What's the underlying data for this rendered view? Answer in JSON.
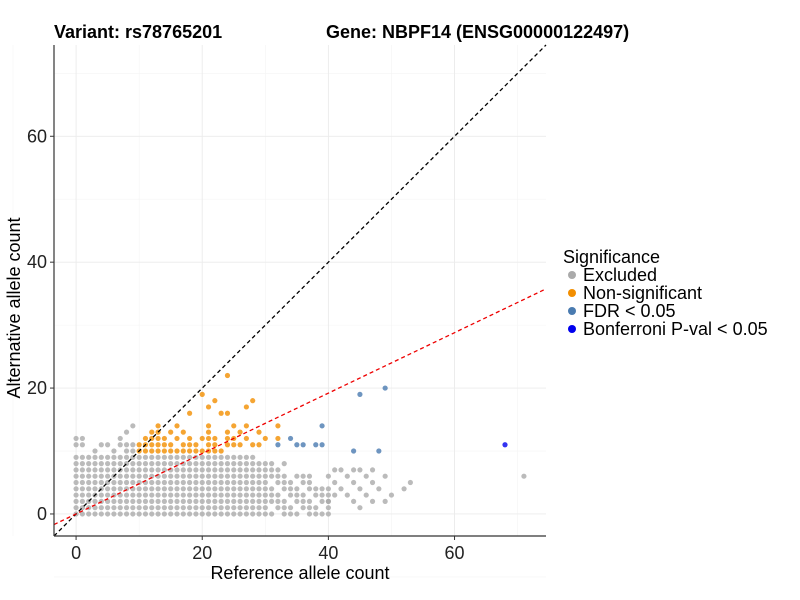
{
  "chart_data": {
    "type": "scatter",
    "title_left": "Variant: rs78765201",
    "title_right": "Gene: NBPF14 (ENSG00000122497)",
    "xlabel": "Reference allele count",
    "ylabel": "Alternative allele count",
    "xlim": [
      -3.5,
      74.5
    ],
    "ylim": [
      -3.5,
      74.5
    ],
    "x_ticks": [
      0,
      20,
      40,
      60
    ],
    "y_ticks": [
      0,
      20,
      40,
      60
    ],
    "grid": true,
    "legend": {
      "title": "Significance",
      "placement": "right",
      "entries": [
        {
          "label": "Excluded",
          "color": "#aaaaaa"
        },
        {
          "label": "Non-significant",
          "color": "#f28e00"
        },
        {
          "label": "FDR < 0.05",
          "color": "#4a7bb0"
        },
        {
          "label": "Bonferroni P-val < 0.05",
          "color": "#0000ee"
        }
      ]
    },
    "reference_lines": [
      {
        "slope": 1,
        "intercept": 0,
        "color": "#000000",
        "dash": "dashed"
      },
      {
        "slope": 0.48,
        "intercept": 0,
        "color": "#ee0000",
        "dash": "dashed"
      }
    ],
    "series": [
      {
        "group": "Non-significant",
        "color": "#f28e00",
        "points": [
          [
            10,
            10
          ],
          [
            11,
            10
          ],
          [
            12,
            10
          ],
          [
            13,
            10
          ],
          [
            14,
            10
          ],
          [
            15,
            10
          ],
          [
            16,
            10
          ],
          [
            17,
            10
          ],
          [
            18,
            10
          ],
          [
            19,
            10
          ],
          [
            20,
            10
          ],
          [
            21,
            10
          ],
          [
            22,
            10
          ],
          [
            23,
            10
          ],
          [
            10,
            11
          ],
          [
            11,
            11
          ],
          [
            12,
            11
          ],
          [
            13,
            11
          ],
          [
            14,
            11
          ],
          [
            15,
            11
          ],
          [
            17,
            11
          ],
          [
            18,
            11
          ],
          [
            19,
            11
          ],
          [
            21,
            11
          ],
          [
            22,
            11
          ],
          [
            24,
            11
          ],
          [
            25,
            11
          ],
          [
            26,
            11
          ],
          [
            28,
            11
          ],
          [
            29,
            11
          ],
          [
            11,
            12
          ],
          [
            12,
            12
          ],
          [
            13,
            12
          ],
          [
            14,
            12
          ],
          [
            16,
            12
          ],
          [
            18,
            12
          ],
          [
            20,
            12
          ],
          [
            21,
            12
          ],
          [
            22,
            12
          ],
          [
            24,
            12
          ],
          [
            25,
            12
          ],
          [
            27,
            12
          ],
          [
            30,
            12
          ],
          [
            32,
            12
          ],
          [
            12,
            13
          ],
          [
            13,
            13
          ],
          [
            15,
            13
          ],
          [
            17,
            13
          ],
          [
            21,
            13
          ],
          [
            24,
            13
          ],
          [
            26,
            13
          ],
          [
            29,
            13
          ],
          [
            13,
            14
          ],
          [
            16,
            14
          ],
          [
            21,
            14
          ],
          [
            25,
            14
          ],
          [
            27,
            14
          ],
          [
            32,
            14
          ],
          [
            18,
            16
          ],
          [
            23,
            16
          ],
          [
            24,
            16
          ],
          [
            21,
            17
          ],
          [
            27,
            17
          ],
          [
            22,
            18
          ],
          [
            28,
            18
          ],
          [
            20,
            19
          ],
          [
            24,
            22
          ]
        ]
      },
      {
        "group": "FDR < 0.05",
        "color": "#4a7bb0",
        "points": [
          [
            32,
            11
          ],
          [
            35,
            11
          ],
          [
            36,
            11
          ],
          [
            38,
            11
          ],
          [
            39,
            11
          ],
          [
            34,
            12
          ],
          [
            39,
            14
          ],
          [
            44,
            10
          ],
          [
            48,
            10
          ],
          [
            45,
            19
          ],
          [
            49,
            20
          ]
        ]
      },
      {
        "group": "Bonferroni P-val < 0.05",
        "color": "#0000ee",
        "points": [
          [
            68,
            11
          ]
        ]
      },
      {
        "group": "Excluded",
        "color": "#aaaaaa",
        "points": [
          [
            0,
            12
          ],
          [
            1,
            12
          ],
          [
            0,
            11
          ],
          [
            1,
            11
          ],
          [
            4,
            11
          ],
          [
            5,
            11
          ],
          [
            7,
            11
          ],
          [
            8,
            11
          ],
          [
            9,
            11
          ],
          [
            3,
            10
          ],
          [
            6,
            10
          ],
          [
            8,
            10
          ],
          [
            9,
            10
          ],
          [
            7,
            12
          ],
          [
            8,
            13
          ],
          [
            9,
            14
          ],
          [
            41,
            7
          ],
          [
            42,
            7
          ],
          [
            44,
            7
          ],
          [
            45,
            7
          ],
          [
            47,
            7
          ],
          [
            40,
            6
          ],
          [
            43,
            6
          ],
          [
            46,
            6
          ],
          [
            49,
            6
          ],
          [
            41,
            5
          ],
          [
            44,
            5
          ],
          [
            47,
            5
          ],
          [
            53,
            5
          ],
          [
            40,
            4
          ],
          [
            42,
            4
          ],
          [
            45,
            4
          ],
          [
            48,
            4
          ],
          [
            52,
            4
          ],
          [
            41,
            3
          ],
          [
            43,
            3
          ],
          [
            46,
            3
          ],
          [
            50,
            3
          ],
          [
            40,
            2
          ],
          [
            44,
            2
          ],
          [
            47,
            2
          ],
          [
            49,
            2
          ],
          [
            45,
            1
          ],
          [
            40,
            0
          ],
          [
            71,
            6
          ]
        ]
      }
    ]
  }
}
